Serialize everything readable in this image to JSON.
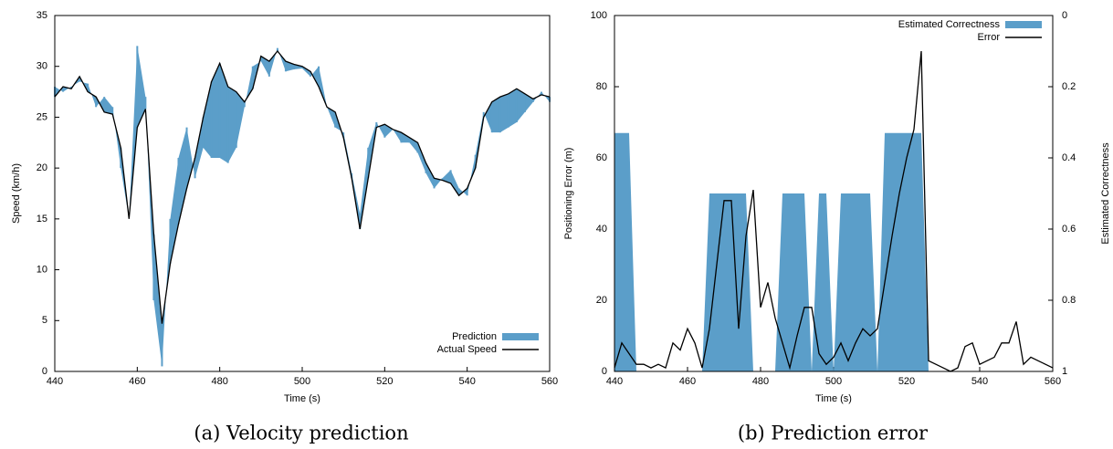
{
  "chart_data": [
    {
      "type": "band",
      "caption": "(a)  Velocity prediction",
      "xlabel": "Time (s)",
      "ylabel": "Speed (km/h)",
      "x": [
        440,
        442,
        444,
        446,
        448,
        450,
        452,
        454,
        456,
        458,
        460,
        462,
        464,
        466,
        468,
        470,
        472,
        474,
        476,
        478,
        480,
        482,
        484,
        486,
        488,
        490,
        492,
        494,
        496,
        498,
        500,
        502,
        504,
        506,
        508,
        510,
        512,
        514,
        516,
        518,
        520,
        522,
        524,
        526,
        528,
        530,
        532,
        534,
        536,
        538,
        540,
        542,
        544,
        546,
        548,
        550,
        552,
        554,
        556,
        558,
        560
      ],
      "series": [
        {
          "name": "Prediction",
          "color": "#5b9ec9",
          "values": [
            28,
            27.5,
            28,
            28.5,
            28.3,
            26,
            27,
            26,
            20,
            15,
            32,
            27,
            7,
            0.5,
            15,
            21,
            24,
            19,
            22,
            21,
            21,
            20.5,
            22,
            26,
            30,
            30.5,
            29,
            31.8,
            29.5,
            29.7,
            29.8,
            29,
            30,
            26,
            24,
            23.5,
            19.5,
            15.5,
            22,
            24.5,
            23,
            23.8,
            22.5,
            22.5,
            21.5,
            19.5,
            18,
            19,
            19.8,
            18,
            17.3,
            21.3,
            25.5,
            23.5,
            23.5,
            24,
            24.5,
            25.5,
            26.5,
            27.5,
            26.5
          ]
        },
        {
          "name": "Actual Speed",
          "color": "#000000",
          "values": [
            27,
            28,
            27.8,
            29,
            27.5,
            27,
            25.5,
            25.3,
            22,
            15,
            24,
            25.8,
            13.5,
            4.7,
            10.6,
            14.5,
            18,
            21,
            25,
            28.5,
            30.3,
            28,
            27.5,
            26.5,
            27.8,
            31,
            30.5,
            31.5,
            30.5,
            30.2,
            30,
            29.5,
            28,
            26,
            25.5,
            23,
            19,
            14,
            19,
            24,
            24.3,
            23.8,
            23.5,
            23,
            22.5,
            20.5,
            19,
            18.8,
            18.5,
            17.3,
            18,
            20,
            25,
            26.5,
            27,
            27.3,
            27.8,
            27.3,
            26.8,
            27.2,
            27
          ]
        }
      ],
      "xlim": [
        440,
        560
      ],
      "xticks": [
        440,
        460,
        480,
        500,
        520,
        540,
        560
      ],
      "ylim": [
        0,
        35
      ],
      "yticks": [
        0,
        5,
        10,
        15,
        20,
        25,
        30,
        35
      ],
      "legend": "lower right"
    },
    {
      "type": "combo",
      "caption": "(b)  Prediction error",
      "xlabel": "Time (s)",
      "ylabel": "Positioning Error (m)",
      "y2label": "Estimated Correctness",
      "x": [
        440,
        442,
        444,
        446,
        448,
        450,
        452,
        454,
        456,
        458,
        460,
        462,
        464,
        466,
        468,
        470,
        472,
        474,
        476,
        478,
        480,
        482,
        484,
        486,
        488,
        490,
        492,
        494,
        496,
        498,
        500,
        502,
        504,
        506,
        508,
        510,
        512,
        514,
        516,
        518,
        520,
        522,
        524,
        526,
        528,
        530,
        532,
        534,
        536,
        538,
        540,
        542,
        544,
        546,
        548,
        550,
        552,
        554,
        556,
        558,
        560
      ],
      "series": [
        {
          "name": "Estimated Correctness",
          "color": "#5b9ec9",
          "axis": "y2",
          "values": [
            0.33,
            0.33,
            0.33,
            1,
            1,
            1,
            1,
            1,
            1,
            1,
            1,
            1,
            1,
            0.5,
            0.5,
            0.5,
            0.5,
            0.5,
            0.5,
            1,
            1,
            1,
            1,
            0.5,
            0.5,
            0.5,
            0.5,
            1,
            0.5,
            0.5,
            1,
            0.5,
            0.5,
            0.5,
            0.5,
            0.5,
            1,
            0.33,
            0.33,
            0.33,
            0.33,
            0.33,
            0.33,
            1,
            1,
            1,
            1,
            1,
            1,
            1,
            1,
            1,
            1,
            1,
            1,
            1,
            1,
            1,
            1,
            1,
            1
          ]
        },
        {
          "name": "Error",
          "color": "#000000",
          "values": [
            1,
            8,
            5,
            2,
            2,
            1,
            2,
            1,
            8,
            6,
            12,
            8,
            1,
            12,
            30,
            48,
            48,
            12,
            38,
            51,
            18,
            25,
            15,
            8,
            1,
            10,
            18,
            18,
            5,
            2,
            4,
            8,
            3,
            8,
            12,
            10,
            12,
            25,
            38,
            50,
            60,
            68,
            90,
            3,
            2,
            1,
            0,
            1,
            7,
            8,
            2,
            3,
            4,
            8,
            8,
            14,
            2,
            4,
            3,
            2,
            1
          ]
        }
      ],
      "xlim": [
        440,
        560
      ],
      "xticks": [
        440,
        460,
        480,
        500,
        520,
        540,
        560
      ],
      "ylim": [
        0,
        100
      ],
      "yticks": [
        0,
        20,
        40,
        60,
        80,
        100
      ],
      "y2lim": [
        0,
        1
      ],
      "y2ticks": [
        0,
        0.2,
        0.4,
        0.6,
        0.8,
        1
      ],
      "y2_inverted": true,
      "legend": "upper right"
    }
  ]
}
